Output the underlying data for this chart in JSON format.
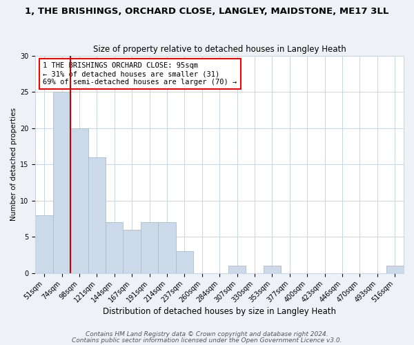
{
  "title": "1, THE BRISHINGS, ORCHARD CLOSE, LANGLEY, MAIDSTONE, ME17 3LL",
  "subtitle": "Size of property relative to detached houses in Langley Heath",
  "xlabel": "Distribution of detached houses by size in Langley Heath",
  "ylabel": "Number of detached properties",
  "bar_labels": [
    "51sqm",
    "74sqm",
    "98sqm",
    "121sqm",
    "144sqm",
    "167sqm",
    "191sqm",
    "214sqm",
    "237sqm",
    "260sqm",
    "284sqm",
    "307sqm",
    "330sqm",
    "353sqm",
    "377sqm",
    "400sqm",
    "423sqm",
    "446sqm",
    "470sqm",
    "493sqm",
    "516sqm"
  ],
  "bar_values": [
    8,
    25,
    20,
    16,
    7,
    6,
    7,
    7,
    3,
    0,
    0,
    1,
    0,
    1,
    0,
    0,
    0,
    0,
    0,
    0,
    1
  ],
  "bar_color": "#ccd9e8",
  "bar_edge_color": "#a8bdd0",
  "vline_x_index": 2,
  "vline_color": "#cc0000",
  "ylim": [
    0,
    30
  ],
  "yticks": [
    0,
    5,
    10,
    15,
    20,
    25,
    30
  ],
  "annotation_text": "1 THE BRISHINGS ORCHARD CLOSE: 95sqm\n← 31% of detached houses are smaller (31)\n69% of semi-detached houses are larger (70) →",
  "footer_line1": "Contains HM Land Registry data © Crown copyright and database right 2024.",
  "footer_line2": "Contains public sector information licensed under the Open Government Licence v3.0.",
  "title_fontsize": 9.5,
  "subtitle_fontsize": 8.5,
  "xlabel_fontsize": 8.5,
  "ylabel_fontsize": 7.5,
  "tick_fontsize": 7,
  "annotation_fontsize": 7.5,
  "footer_fontsize": 6.5,
  "background_color": "#eef2f7",
  "plot_bg_color": "#ffffff",
  "grid_color": "#c8d5e3"
}
